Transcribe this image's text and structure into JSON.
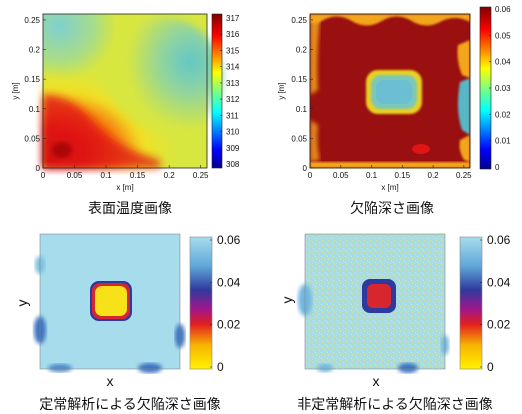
{
  "chart_data": [
    {
      "type": "heatmap",
      "caption": "表面温度画像",
      "xlabel": "x [m]",
      "ylabel": "y [m]",
      "xticks": [
        "0",
        "0.05",
        "0.1",
        "0.15",
        "0.2",
        "0.25"
      ],
      "yticks": [
        "0",
        "0.05",
        "0.1",
        "0.15",
        "0.2",
        "0.25"
      ],
      "xlim": [
        0,
        0.26
      ],
      "ylim": [
        0,
        0.26
      ],
      "colorbar": {
        "ticks": [
          "308",
          "309",
          "310",
          "311",
          "312",
          "313",
          "314",
          "315",
          "316",
          "317"
        ],
        "range": [
          308,
          317
        ]
      },
      "pattern": "hot lower-left and left side (316-317), cool upper-left and right (~311-312), yellow band (313-314) in between"
    },
    {
      "type": "heatmap",
      "caption": "欠陥深さ画像",
      "xlabel": "x [m]",
      "ylabel": "y [m]",
      "xticks": [
        "0",
        "0.05",
        "0.1",
        "0.15",
        "0.2",
        "0.25"
      ],
      "yticks": [
        "0",
        "0.05",
        "0.1",
        "0.15",
        "0.2",
        "0.25"
      ],
      "xlim": [
        0,
        0.26
      ],
      "ylim": [
        0,
        0.26
      ],
      "colorbar": {
        "ticks": [
          "0",
          "0.01",
          "0.02",
          "0.03",
          "0.04",
          "0.05",
          "0.06"
        ],
        "range": [
          0,
          0.06
        ]
      },
      "pattern": "mostly dark red (0.06) with a light-blue square near center (~0.03) and blue edges"
    },
    {
      "type": "heatmap",
      "caption": "定常解析による欠陥深さ画像",
      "xlabel": "x",
      "ylabel": "y",
      "colorbar": {
        "ticks": [
          "0",
          "0.02",
          "0.04",
          "0.06"
        ],
        "range": [
          0,
          0.06
        ]
      },
      "pattern": "uniform light blue (~0.05) with a yellow square at center ringed by red/blue"
    },
    {
      "type": "heatmap",
      "caption": "非定常解析による欠陥深さ画像",
      "xlabel": "x",
      "ylabel": "y",
      "colorbar": {
        "ticks": [
          "0",
          "0.02",
          "0.04",
          "0.06"
        ],
        "range": [
          0,
          0.06
        ]
      },
      "pattern": "noisy light blue/green background with a small red square at center ringed by dark blue"
    }
  ]
}
